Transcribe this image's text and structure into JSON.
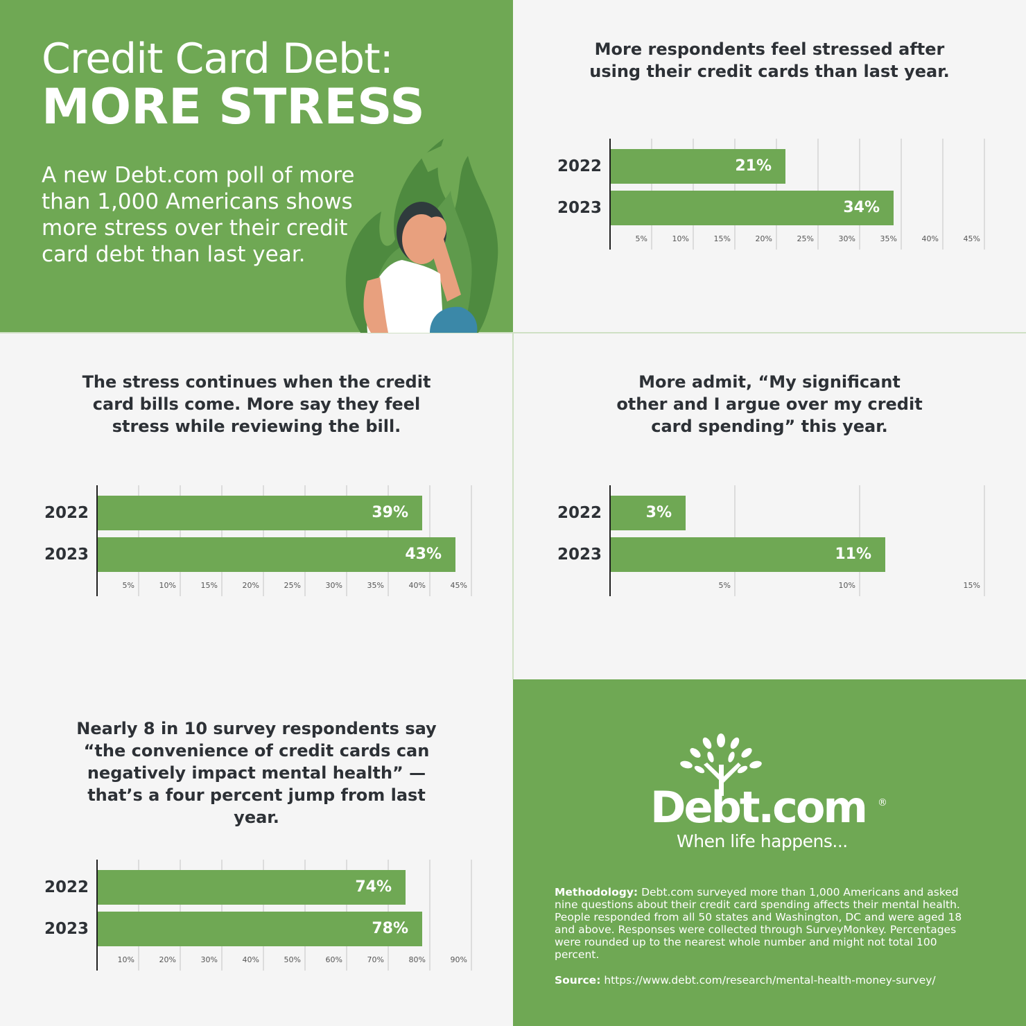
{
  "hero": {
    "title_line1": "Credit Card Debt:",
    "title_line2": "MORE STRESS",
    "subtitle": "A new Debt.com poll of more than 1,000 Americans shows more stress over their credit card debt than last year."
  },
  "colors": {
    "brand_green": "#6fa854",
    "panel_light": "#f5f5f5",
    "text_dark": "#2d3136"
  },
  "chart_data": [
    {
      "type": "bar",
      "orientation": "horizontal",
      "title": "More respondents feel stressed after using their credit cards than last year.",
      "categories": [
        "2022",
        "2023"
      ],
      "values": [
        21,
        34
      ],
      "value_labels": [
        "21%",
        "34%"
      ],
      "ticks": [
        "5%",
        "10%",
        "15%",
        "20%",
        "25%",
        "30%",
        "35%",
        "40%",
        "45%"
      ],
      "xlim": [
        0,
        45
      ],
      "grid": true
    },
    {
      "type": "bar",
      "orientation": "horizontal",
      "title": "The stress continues when the credit card bills come. More say they feel stress while reviewing the bill.",
      "categories": [
        "2022",
        "2023"
      ],
      "values": [
        39,
        43
      ],
      "value_labels": [
        "39%",
        "43%"
      ],
      "ticks": [
        "5%",
        "10%",
        "15%",
        "20%",
        "25%",
        "30%",
        "35%",
        "40%",
        "45%"
      ],
      "xlim": [
        0,
        45
      ],
      "grid": true
    },
    {
      "type": "bar",
      "orientation": "horizontal",
      "title": "More admit, “My significant other and I argue over my credit card spending” this year.",
      "categories": [
        "2022",
        "2023"
      ],
      "values": [
        3,
        11
      ],
      "value_labels": [
        "3%",
        "11%"
      ],
      "ticks": [
        "5%",
        "10%",
        "15%"
      ],
      "xlim": [
        0,
        15
      ],
      "grid": true
    },
    {
      "type": "bar",
      "orientation": "horizontal",
      "title": "Nearly 8 in 10 survey respondents say “the convenience of credit cards can negatively impact mental health” — that’s a four percent jump from last year.",
      "categories": [
        "2022",
        "2023"
      ],
      "values": [
        74,
        78
      ],
      "value_labels": [
        "74%",
        "78%"
      ],
      "ticks": [
        "10%",
        "20%",
        "30%",
        "40%",
        "50%",
        "60%",
        "70%",
        "80%",
        "90%"
      ],
      "xlim": [
        0,
        90
      ],
      "grid": true
    }
  ],
  "logo": {
    "brand": "Debt.com",
    "registered": "®",
    "tagline": "When life happens..."
  },
  "methodology": {
    "label": "Methodology:",
    "text": "Debt.com surveyed more than 1,000 Americans and asked nine questions about their credit card spending affects their mental health. People responded from all 50 states and Washington, DC and were aged 18 and above. Responses were collected through SurveyMonkey. Percentages were rounded up to the nearest whole number and might not total 100 percent."
  },
  "source": {
    "label": "Source:",
    "url": "https://www.debt.com/research/mental-health-money-survey/"
  }
}
